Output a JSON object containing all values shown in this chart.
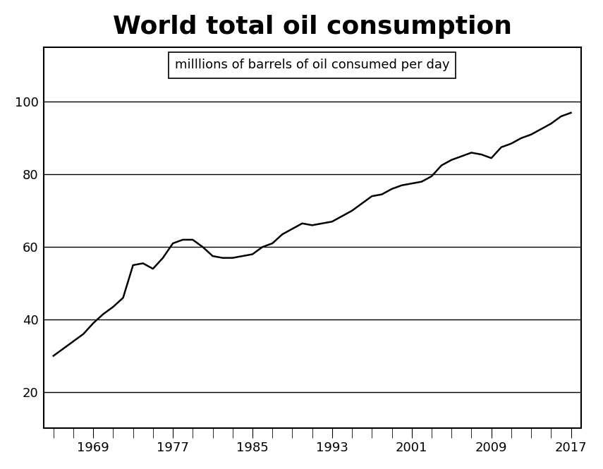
{
  "title": "World total oil consumption",
  "subtitle": "milllions of barrels of oil consumed per day",
  "years": [
    1965,
    1966,
    1967,
    1968,
    1969,
    1970,
    1971,
    1972,
    1973,
    1974,
    1975,
    1976,
    1977,
    1978,
    1979,
    1980,
    1981,
    1982,
    1983,
    1984,
    1985,
    1986,
    1987,
    1988,
    1989,
    1990,
    1991,
    1992,
    1993,
    1994,
    1995,
    1996,
    1997,
    1998,
    1999,
    2000,
    2001,
    2002,
    2003,
    2004,
    2005,
    2006,
    2007,
    2008,
    2009,
    2010,
    2011,
    2012,
    2013,
    2014,
    2015,
    2016,
    2017
  ],
  "values": [
    30,
    32,
    34,
    36,
    39,
    41.5,
    43.5,
    46,
    55,
    55.5,
    54,
    57,
    61,
    62,
    62,
    60,
    57.5,
    57,
    57,
    57.5,
    58,
    60,
    61,
    63.5,
    65,
    66.5,
    66,
    66.5,
    67,
    68.5,
    70,
    72,
    74,
    74.5,
    76,
    77,
    77.5,
    78,
    79.5,
    82.5,
    84,
    85,
    86,
    85.5,
    84.5,
    87.5,
    88.5,
    90,
    91,
    92.5,
    94,
    96,
    97
  ],
  "xlim": [
    1964,
    2018
  ],
  "ylim": [
    10,
    115
  ],
  "yticks": [
    20,
    40,
    60,
    80,
    100
  ],
  "xtick_labels": [
    1969,
    1977,
    1985,
    1993,
    2001,
    2009,
    2017
  ],
  "line_color": "#000000",
  "line_width": 1.8,
  "background_color": "#ffffff",
  "title_fontsize": 26,
  "subtitle_fontsize": 13,
  "tick_label_fontsize": 13,
  "grid_linewidth": 1.0,
  "spine_linewidth": 1.5
}
